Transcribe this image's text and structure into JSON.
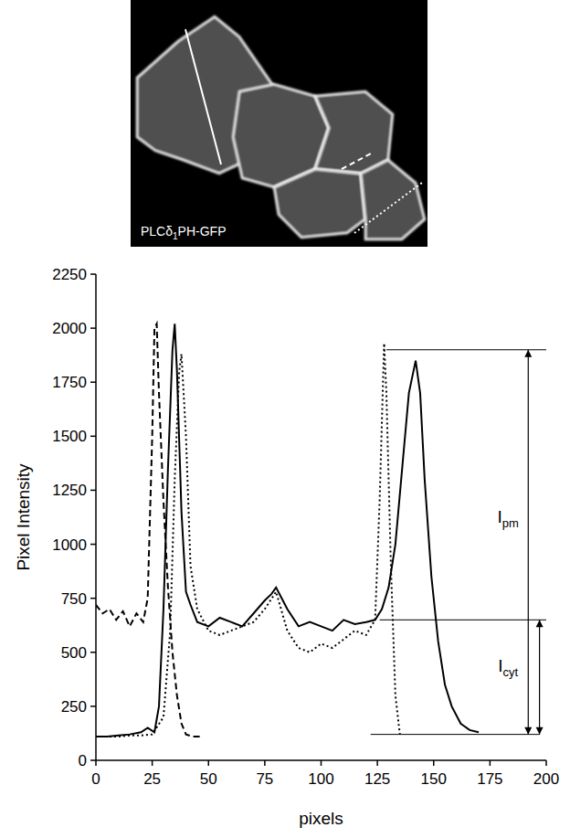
{
  "chart_data": {
    "type": "line",
    "image_label": {
      "text": "PLCδ",
      "subscript": "1",
      "suffix": "PH-GFP"
    },
    "x_label": "pixels",
    "y_label": "Pixel Intensity",
    "xlim": [
      0,
      200
    ],
    "xticks": [
      0,
      25,
      50,
      75,
      100,
      125,
      150,
      175,
      200
    ],
    "ylim": [
      0,
      2250
    ],
    "yticks": [
      0,
      250,
      500,
      750,
      1000,
      1250,
      1500,
      1750,
      2000,
      2250
    ],
    "grid": false,
    "series": [
      {
        "color": "#000000",
        "line_style": "solid",
        "x": [
          0,
          5,
          10,
          15,
          20,
          23,
          26,
          28,
          30,
          32,
          34,
          35,
          36,
          38,
          40,
          42,
          45,
          50,
          55,
          60,
          65,
          70,
          75,
          78,
          80,
          82,
          85,
          90,
          95,
          100,
          105,
          110,
          115,
          120,
          124,
          127,
          130,
          133,
          136,
          139,
          142,
          144,
          146,
          149,
          152,
          155,
          158,
          162,
          166,
          170
        ],
        "values": [
          110,
          110,
          115,
          120,
          130,
          150,
          130,
          250,
          700,
          1350,
          1900,
          2020,
          1800,
          1150,
          780,
          720,
          640,
          620,
          660,
          640,
          620,
          680,
          740,
          770,
          800,
          760,
          700,
          620,
          640,
          620,
          600,
          650,
          630,
          640,
          650,
          700,
          800,
          1000,
          1350,
          1700,
          1850,
          1700,
          1300,
          850,
          550,
          350,
          250,
          170,
          140,
          130
        ]
      },
      {
        "color": "#000000",
        "line_style": "dashed",
        "x": [
          0,
          3,
          6,
          9,
          12,
          15,
          18,
          21,
          23,
          25,
          26,
          27,
          28,
          30,
          32,
          34,
          36,
          38,
          40,
          43,
          47
        ],
        "values": [
          720,
          680,
          700,
          650,
          690,
          620,
          680,
          640,
          750,
          1500,
          2000,
          2020,
          1700,
          1200,
          800,
          500,
          300,
          170,
          120,
          110,
          110
        ]
      },
      {
        "color": "#000000",
        "line_style": "dotted",
        "x": [
          0,
          5,
          10,
          15,
          20,
          25,
          30,
          33,
          35,
          37,
          38,
          40,
          42,
          45,
          50,
          55,
          60,
          65,
          70,
          75,
          80,
          85,
          90,
          95,
          100,
          105,
          110,
          115,
          120,
          124,
          126,
          128,
          129,
          131,
          133,
          135
        ],
        "values": [
          110,
          110,
          110,
          115,
          115,
          120,
          200,
          600,
          1300,
          1800,
          1880,
          1500,
          900,
          700,
          600,
          580,
          600,
          620,
          640,
          700,
          780,
          600,
          520,
          500,
          540,
          520,
          560,
          600,
          580,
          650,
          1200,
          1930,
          1700,
          900,
          300,
          120
        ]
      }
    ],
    "guides": [
      {
        "y": 1900,
        "x": [
          129,
          200
        ]
      },
      {
        "y": 650,
        "x": [
          126,
          200
        ]
      },
      {
        "y": 120,
        "x": [
          122,
          197
        ]
      }
    ],
    "annotations": [
      {
        "text": "I",
        "subscript": "pm",
        "x": 183,
        "y": 1100,
        "arrow_x": 192,
        "from": 120,
        "to": 1900
      },
      {
        "text": "I",
        "subscript": "cyt",
        "x": 183,
        "y": 410,
        "arrow_x": 197,
        "from": 120,
        "to": 650
      }
    ]
  }
}
